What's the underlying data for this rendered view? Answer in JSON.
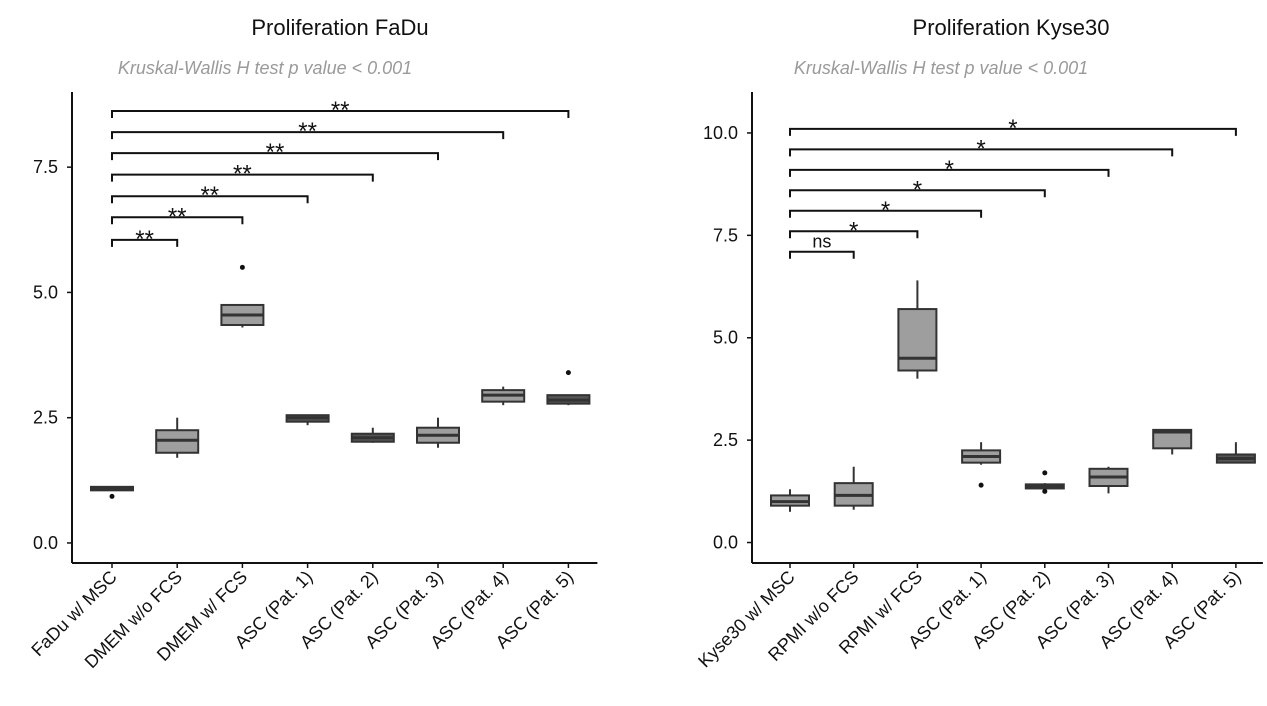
{
  "chart_data": [
    {
      "type": "boxplot",
      "title": "Proliferation FaDu",
      "subtitle": "Kruskal-Wallis H test p value < 0.001",
      "xlabel": "",
      "ylabel": "",
      "ylim": [
        -0.4,
        9.0
      ],
      "yticks": [
        0.0,
        2.5,
        5.0,
        7.5
      ],
      "ytick_labels": [
        "0.0",
        "2.5",
        "5.0",
        "7.5"
      ],
      "categories": [
        "FaDu w/ MSC",
        "DMEM w/o FCS",
        "DMEM w/ FCS",
        "ASC (Pat. 1)",
        "ASC (Pat. 2)",
        "ASC (Pat. 3)",
        "ASC (Pat. 4)",
        "ASC (Pat. 5)"
      ],
      "boxes": [
        {
          "whisker_low": 1.05,
          "q1": 1.05,
          "median": 1.08,
          "q3": 1.12,
          "whisker_high": 1.12,
          "outliers": [
            0.93
          ],
          "fill": "#555555"
        },
        {
          "whisker_low": 1.7,
          "q1": 1.8,
          "median": 2.05,
          "q3": 2.25,
          "whisker_high": 2.5,
          "outliers": [],
          "fill": "#9e9e9e"
        },
        {
          "whisker_low": 4.3,
          "q1": 4.35,
          "median": 4.55,
          "q3": 4.75,
          "whisker_high": 4.75,
          "outliers": [
            5.5
          ],
          "fill": "#9e9e9e"
        },
        {
          "whisker_low": 2.35,
          "q1": 2.42,
          "median": 2.5,
          "q3": 2.55,
          "whisker_high": 2.55,
          "outliers": [],
          "fill": "#555555"
        },
        {
          "whisker_low": 2.0,
          "q1": 2.02,
          "median": 2.1,
          "q3": 2.18,
          "whisker_high": 2.3,
          "outliers": [],
          "fill": "#555555"
        },
        {
          "whisker_low": 1.9,
          "q1": 2.0,
          "median": 2.15,
          "q3": 2.3,
          "whisker_high": 2.5,
          "outliers": [],
          "fill": "#9e9e9e"
        },
        {
          "whisker_low": 2.75,
          "q1": 2.82,
          "median": 2.95,
          "q3": 3.05,
          "whisker_high": 3.12,
          "outliers": [],
          "fill": "#9e9e9e"
        },
        {
          "whisker_low": 2.75,
          "q1": 2.78,
          "median": 2.85,
          "q3": 2.95,
          "whisker_high": 2.95,
          "outliers": [
            3.4
          ],
          "fill": "#555555"
        }
      ],
      "comparisons": [
        {
          "from": 0,
          "to": 1,
          "label": "**",
          "y": 6.05
        },
        {
          "from": 0,
          "to": 2,
          "label": "**",
          "y": 6.5
        },
        {
          "from": 0,
          "to": 3,
          "label": "**",
          "y": 6.92
        },
        {
          "from": 0,
          "to": 4,
          "label": "**",
          "y": 7.35
        },
        {
          "from": 0,
          "to": 5,
          "label": "**",
          "y": 7.78
        },
        {
          "from": 0,
          "to": 6,
          "label": "**",
          "y": 8.2
        },
        {
          "from": 0,
          "to": 7,
          "label": "**",
          "y": 8.62
        }
      ]
    },
    {
      "type": "boxplot",
      "title": "Proliferation Kyse30",
      "subtitle": "Kruskal-Wallis H test p value < 0.001",
      "xlabel": "",
      "ylabel": "",
      "ylim": [
        -0.5,
        11.0
      ],
      "yticks": [
        0.0,
        2.5,
        5.0,
        7.5,
        10.0
      ],
      "ytick_labels": [
        "0.0",
        "2.5",
        "5.0",
        "7.5",
        "10.0"
      ],
      "categories": [
        "Kyse30 w/ MSC",
        "RPMI w/o FCS",
        "RPMI w/ FCS",
        "ASC (Pat. 1)",
        "ASC (Pat. 2)",
        "ASC (Pat. 3)",
        "ASC (Pat. 4)",
        "ASC (Pat. 5)"
      ],
      "boxes": [
        {
          "whisker_low": 0.75,
          "q1": 0.9,
          "median": 1.0,
          "q3": 1.15,
          "whisker_high": 1.3,
          "outliers": [],
          "fill": "#9e9e9e"
        },
        {
          "whisker_low": 0.8,
          "q1": 0.9,
          "median": 1.15,
          "q3": 1.45,
          "whisker_high": 1.85,
          "outliers": [],
          "fill": "#9e9e9e"
        },
        {
          "whisker_low": 4.0,
          "q1": 4.2,
          "median": 4.5,
          "q3": 5.7,
          "whisker_high": 6.4,
          "outliers": [],
          "fill": "#9e9e9e"
        },
        {
          "whisker_low": 1.9,
          "q1": 1.95,
          "median": 2.1,
          "q3": 2.25,
          "whisker_high": 2.45,
          "outliers": [
            1.4
          ],
          "fill": "#9e9e9e"
        },
        {
          "whisker_low": 1.28,
          "q1": 1.32,
          "median": 1.38,
          "q3": 1.42,
          "whisker_high": 1.45,
          "outliers": [
            1.7,
            1.25
          ],
          "fill": "#555555"
        },
        {
          "whisker_low": 1.2,
          "q1": 1.38,
          "median": 1.6,
          "q3": 1.8,
          "whisker_high": 1.85,
          "outliers": [],
          "fill": "#9e9e9e"
        },
        {
          "whisker_low": 2.15,
          "q1": 2.3,
          "median": 2.7,
          "q3": 2.75,
          "whisker_high": 2.75,
          "outliers": [],
          "fill": "#9e9e9e"
        },
        {
          "whisker_low": 1.95,
          "q1": 1.95,
          "median": 2.05,
          "q3": 2.15,
          "whisker_high": 2.45,
          "outliers": [],
          "fill": "#555555"
        }
      ],
      "comparisons": [
        {
          "from": 0,
          "to": 1,
          "label": "ns",
          "y": 7.1
        },
        {
          "from": 0,
          "to": 2,
          "label": "*",
          "y": 7.6
        },
        {
          "from": 0,
          "to": 3,
          "label": "*",
          "y": 8.1
        },
        {
          "from": 0,
          "to": 4,
          "label": "*",
          "y": 8.6
        },
        {
          "from": 0,
          "to": 5,
          "label": "*",
          "y": 9.1
        },
        {
          "from": 0,
          "to": 6,
          "label": "*",
          "y": 9.6
        },
        {
          "from": 0,
          "to": 7,
          "label": "*",
          "y": 10.1
        }
      ]
    }
  ]
}
